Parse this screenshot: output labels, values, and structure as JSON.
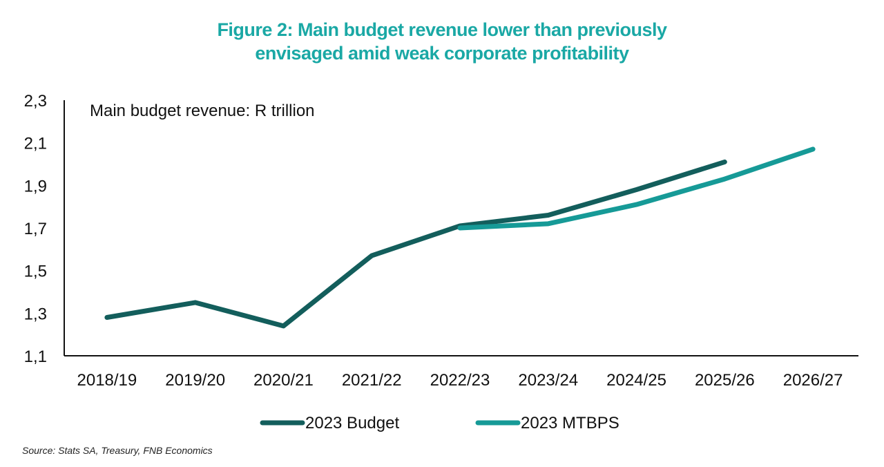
{
  "chart_data": {
    "type": "line",
    "title": "Figure 2: Main budget revenue lower than previously envisaged amid weak corporate profitability",
    "title_lines": [
      "Figure 2: Main budget revenue lower than previously",
      "envisaged amid weak corporate profitability"
    ],
    "annotation": "Main budget revenue: R trillion",
    "categories": [
      "2018/19",
      "2019/20",
      "2020/21",
      "2021/22",
      "2022/23",
      "2023/24",
      "2024/25",
      "2025/26",
      "2026/27"
    ],
    "ylim": [
      1.1,
      2.3
    ],
    "yticks": [
      "1,1",
      "1,3",
      "1,5",
      "1,7",
      "1,9",
      "2,1",
      "2,3"
    ],
    "ytick_values": [
      1.1,
      1.3,
      1.5,
      1.7,
      1.9,
      2.1,
      2.3
    ],
    "grid": false,
    "legend_position": "bottom",
    "series": [
      {
        "name": "2023 Budget",
        "color": "#135e5c",
        "values": [
          1.28,
          1.35,
          1.24,
          1.57,
          1.71,
          1.76,
          1.88,
          2.01,
          null
        ]
      },
      {
        "name": "2023 MTBPS",
        "color": "#169a97",
        "values": [
          null,
          null,
          null,
          null,
          1.7,
          1.72,
          1.81,
          1.93,
          2.07
        ]
      }
    ],
    "source": "Source: Stats SA, Treasury, FNB Economics"
  }
}
